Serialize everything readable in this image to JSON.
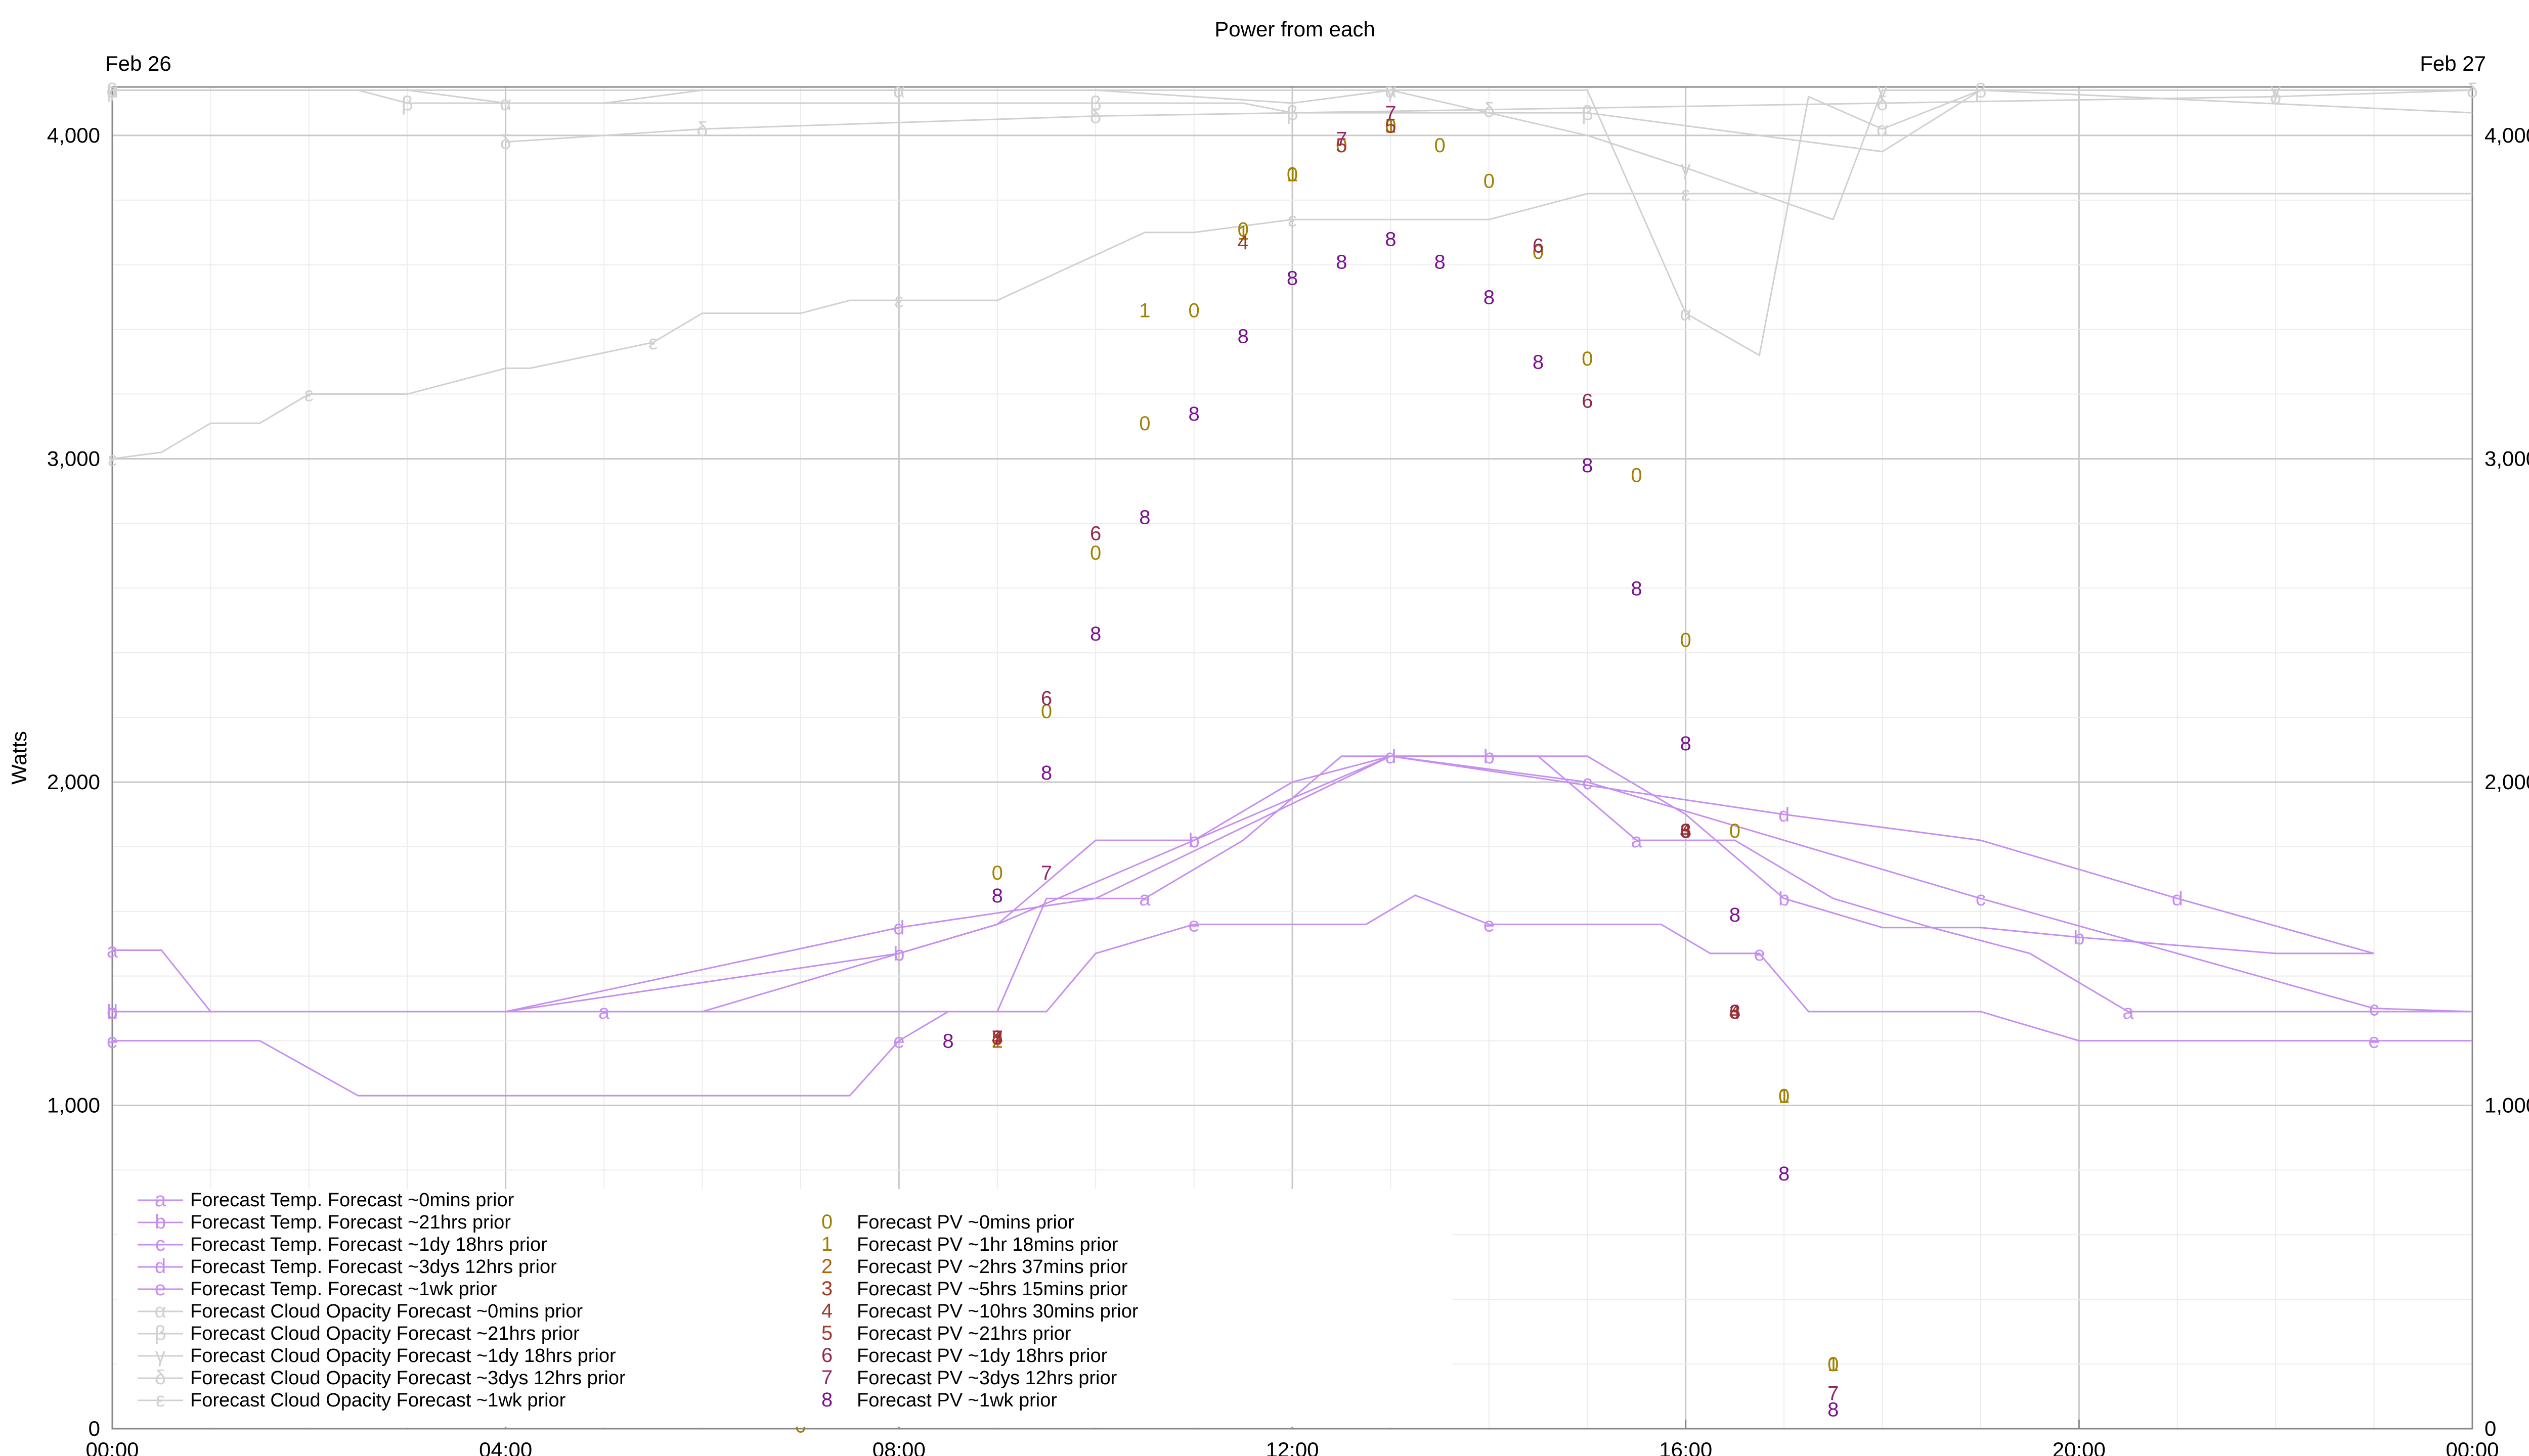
{
  "chart_data": {
    "type": "line",
    "title": "Power from each",
    "ylabel": "Watts",
    "ylim": [
      0,
      4150
    ],
    "xlim": [
      "2024-02-26 00:00",
      "2024-02-27 00:00"
    ],
    "x_ticks": [
      "00:00",
      "04:00",
      "08:00",
      "12:00",
      "16:00",
      "20:00",
      "00:00"
    ],
    "date_labels": {
      "left": "Feb 26",
      "right": "Feb 27"
    },
    "y_ticks": [
      "0",
      "1,000",
      "2,000",
      "3,000",
      "4,000"
    ],
    "grid": true,
    "legend_position": "bottom-left",
    "series": [
      {
        "name": "Forecast Temp. Forecast ~0mins prior",
        "marker": "a",
        "color": "#c58ef0",
        "kind": "line",
        "x": [
          "00:00",
          "00:30",
          "01:00",
          "02:00",
          "04:00",
          "05:00",
          "07:00",
          "08:00",
          "09:00",
          "09:30",
          "10:30",
          "11:30",
          "12:30",
          "13:30",
          "14:30",
          "15:30",
          "16:30",
          "17:30",
          "18:30",
          "19:30",
          "20:30",
          "21:30",
          "22:30",
          "23:30",
          "24:00"
        ],
        "y": [
          1480,
          1480,
          1290,
          1290,
          1290,
          1290,
          1290,
          1290,
          1290,
          1640,
          1640,
          1820,
          2080,
          2080,
          2080,
          1820,
          1820,
          1640,
          1550,
          1470,
          1290,
          1290,
          1290,
          1290,
          1290
        ]
      },
      {
        "name": "Forecast Temp. Forecast ~21hrs prior",
        "marker": "b",
        "color": "#c58ef0",
        "kind": "line",
        "x": [
          "00:00",
          "03:00",
          "06:00",
          "08:00",
          "09:00",
          "10:00",
          "11:00",
          "12:00",
          "13:00",
          "14:00",
          "15:00",
          "16:00",
          "17:00",
          "18:00",
          "19:00",
          "20:00",
          "22:00",
          "23:00"
        ],
        "y": [
          1290,
          1290,
          1290,
          1470,
          1560,
          1820,
          1820,
          2000,
          2080,
          2080,
          2080,
          1900,
          1640,
          1550,
          1550,
          1520,
          1470,
          1470
        ]
      },
      {
        "name": "Forecast Temp. Forecast ~1dy 18hrs prior",
        "marker": "c",
        "color": "#c58ef0",
        "kind": "line",
        "x": [
          "00:00",
          "04:00",
          "08:00",
          "09:00",
          "11:00",
          "13:00",
          "15:00",
          "17:00",
          "19:00",
          "21:00",
          "23:00",
          "24:00"
        ],
        "y": [
          1290,
          1290,
          1470,
          1560,
          1820,
          2080,
          2000,
          1820,
          1640,
          1470,
          1300,
          1290
        ]
      },
      {
        "name": "Forecast Temp. Forecast ~3dys 12hrs prior",
        "marker": "d",
        "color": "#c58ef0",
        "kind": "line",
        "x": [
          "00:00",
          "04:00",
          "08:00",
          "10:00",
          "13:00",
          "15:00",
          "17:00",
          "19:00",
          "21:00",
          "23:00"
        ],
        "y": [
          1290,
          1290,
          1550,
          1640,
          2080,
          1990,
          1900,
          1820,
          1640,
          1470
        ]
      },
      {
        "name": "Forecast Temp. Forecast ~1wk prior",
        "marker": "e",
        "color": "#c58ef0",
        "kind": "line",
        "x": [
          "00:00",
          "01:30",
          "02:30",
          "07:30",
          "08:00",
          "08:30",
          "09:30",
          "10:00",
          "11:00",
          "12:00",
          "12:45",
          "13:15",
          "14:00",
          "15:00",
          "15:45",
          "16:15",
          "16:45",
          "17:15",
          "19:00",
          "20:00",
          "23:00",
          "24:00"
        ],
        "y": [
          1200,
          1200,
          1030,
          1030,
          1200,
          1290,
          1290,
          1470,
          1560,
          1560,
          1560,
          1650,
          1560,
          1560,
          1560,
          1470,
          1470,
          1290,
          1290,
          1200,
          1200,
          1200
        ]
      },
      {
        "name": "Forecast Cloud Opacity Forecast ~0mins prior",
        "marker": "α",
        "color": "#d0d0d0",
        "kind": "line",
        "x": [
          "00:00",
          "02:00",
          "03:00",
          "04:00",
          "05:00",
          "06:00",
          "08:00",
          "10:00",
          "12:00",
          "13:00",
          "14:00",
          "15:00",
          "16:00",
          "16:45",
          "17:15",
          "18:00",
          "19:00",
          "24:00"
        ],
        "y": [
          4140,
          4140,
          4140,
          4100,
          4100,
          4140,
          4140,
          4140,
          4100,
          4140,
          4140,
          4140,
          3450,
          3320,
          4120,
          4020,
          4140,
          4140
        ]
      },
      {
        "name": "Forecast Cloud Opacity Forecast ~21hrs prior",
        "marker": "β",
        "color": "#d0d0d0",
        "kind": "line",
        "x": [
          "00:00",
          "02:30",
          "03:00",
          "05:00",
          "10:00",
          "11:30",
          "12:00",
          "14:30",
          "15:00",
          "18:00",
          "19:00",
          "24:00"
        ],
        "y": [
          4140,
          4140,
          4100,
          4100,
          4100,
          4100,
          4070,
          4070,
          4070,
          3950,
          4140,
          4070
        ]
      },
      {
        "name": "Forecast Cloud Opacity Forecast ~1dy 18hrs prior",
        "marker": "γ",
        "color": "#d0d0d0",
        "kind": "line",
        "x": [
          "00:00",
          "12:00",
          "13:00",
          "15:00",
          "16:00",
          "17:30",
          "18:00",
          "20:00",
          "22:00",
          "24:00"
        ],
        "y": [
          4140,
          4140,
          4140,
          4000,
          3900,
          3740,
          4140,
          4140,
          4140,
          4140
        ]
      },
      {
        "name": "Forecast Cloud Opacity Forecast ~3dys 12hrs prior",
        "marker": "δ",
        "color": "#d0d0d0",
        "kind": "line",
        "x": [
          "04:00",
          "06:00",
          "10:00",
          "14:00",
          "18:00",
          "22:00",
          "24:00"
        ],
        "y": [
          3980,
          4020,
          4060,
          4080,
          4100,
          4120,
          4140
        ]
      },
      {
        "name": "Forecast Cloud Opacity Forecast ~1wk prior",
        "marker": "ε",
        "color": "#d0d0d0",
        "kind": "line",
        "x": [
          "00:00",
          "00:30",
          "01:00",
          "01:30",
          "02:00",
          "03:00",
          "04:00",
          "04:15",
          "05:30",
          "06:00",
          "07:00",
          "07:30",
          "08:00",
          "09:00",
          "10:30",
          "11:00",
          "12:00",
          "13:00",
          "14:00",
          "15:00",
          "16:00",
          "24:00"
        ],
        "y": [
          3000,
          3020,
          3110,
          3110,
          3200,
          3200,
          3280,
          3280,
          3360,
          3450,
          3450,
          3490,
          3490,
          3490,
          3700,
          3700,
          3740,
          3740,
          3740,
          3820,
          3820,
          3820
        ]
      },
      {
        "name": "Forecast PV ~0mins prior",
        "marker": "0",
        "color": "#a08000",
        "kind": "marks",
        "x": [
          "07:00",
          "07:30",
          "08:00",
          "08:30",
          "09:00",
          "09:30",
          "10:00",
          "10:30",
          "11:00",
          "11:30",
          "12:00",
          "12:30",
          "13:00",
          "13:30",
          "14:00",
          "14:30",
          "15:00",
          "15:30",
          "16:00",
          "16:30",
          "17:00",
          "17:30"
        ],
        "y": [
          10,
          100,
          200,
          630,
          1720,
          2220,
          2710,
          3110,
          3460,
          3710,
          3880,
          3970,
          4030,
          3970,
          3860,
          3640,
          3310,
          2950,
          2440,
          1850,
          1030,
          200
        ]
      },
      {
        "name": "Forecast PV ~1hr 18mins prior",
        "marker": "1",
        "color": "#a08000",
        "kind": "marks",
        "x": [
          "07:30",
          "08:00",
          "08:30",
          "09:00",
          "10:30",
          "11:30",
          "12:00",
          "13:00",
          "17:00",
          "17:30"
        ],
        "y": [
          100,
          200,
          650,
          1200,
          3460,
          3700,
          3880,
          4030,
          1030,
          200
        ]
      },
      {
        "name": "Forecast PV ~2hrs 37mins prior",
        "marker": "2",
        "color": "#b06000",
        "kind": "marks",
        "x": [
          "07:30",
          "08:00",
          "08:30",
          "09:00"
        ],
        "y": [
          100,
          200,
          650,
          1200
        ]
      },
      {
        "name": "Forecast PV ~5hrs 15mins prior",
        "marker": "3",
        "color": "#a03820",
        "kind": "marks",
        "x": [
          "07:30",
          "08:00",
          "09:00",
          "16:00",
          "16:30"
        ],
        "y": [
          100,
          190,
          1210,
          1850,
          1290
        ]
      },
      {
        "name": "Forecast PV ~10hrs 30mins prior",
        "marker": "4",
        "color": "#a03820",
        "kind": "marks",
        "x": [
          "07:30",
          "09:00",
          "11:30",
          "16:00",
          "16:30"
        ],
        "y": [
          100,
          1210,
          3670,
          1850,
          1290
        ]
      },
      {
        "name": "Forecast PV ~21hrs prior",
        "marker": "5",
        "color": "#a03830",
        "kind": "marks",
        "x": [
          "07:30",
          "09:00",
          "12:30",
          "13:00"
        ],
        "y": [
          100,
          1210,
          3970,
          4030
        ]
      },
      {
        "name": "Forecast PV ~1dy 18hrs prior",
        "marker": "6",
        "color": "#902850",
        "kind": "marks",
        "x": [
          "09:30",
          "10:00",
          "14:30",
          "15:00",
          "16:00",
          "16:30"
        ],
        "y": [
          2260,
          2770,
          3660,
          3180,
          1850,
          1290
        ]
      },
      {
        "name": "Forecast PV ~3dys 12hrs prior",
        "marker": "7",
        "color": "#902868",
        "kind": "marks",
        "x": [
          "07:30",
          "08:00",
          "09:00",
          "09:30",
          "12:30",
          "13:00",
          "17:30"
        ],
        "y": [
          100,
          190,
          1210,
          1720,
          3990,
          4070,
          110
        ]
      },
      {
        "name": "Forecast PV ~1wk prior",
        "marker": "8",
        "color": "#7a1090",
        "kind": "marks",
        "x": [
          "07:00",
          "07:30",
          "08:00",
          "08:30",
          "09:00",
          "09:30",
          "10:00",
          "10:30",
          "11:00",
          "11:30",
          "12:00",
          "12:30",
          "13:00",
          "13:30",
          "14:00",
          "14:30",
          "15:00",
          "15:30",
          "16:00",
          "16:30",
          "17:00",
          "17:30"
        ],
        "y": [
          80,
          300,
          700,
          1200,
          1650,
          2030,
          2460,
          2820,
          3140,
          3380,
          3560,
          3610,
          3680,
          3610,
          3500,
          3300,
          2980,
          2600,
          2120,
          1590,
          790,
          60
        ]
      }
    ]
  }
}
